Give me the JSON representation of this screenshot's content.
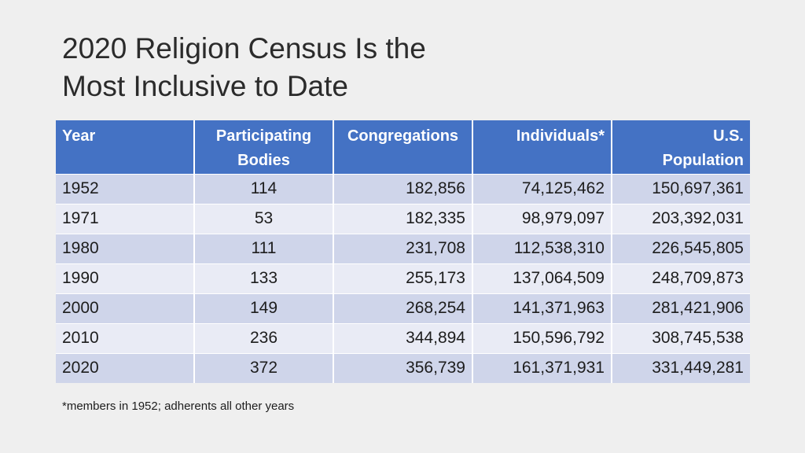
{
  "slide": {
    "title_line1": "2020 Religion Census Is the",
    "title_line2": "Most Inclusive to Date",
    "footnote": "*members in 1952; adherents all other years"
  },
  "table": {
    "headers": {
      "year": "Year",
      "bodies_line1": "Participating",
      "bodies_line2": "Bodies",
      "congregations": "Congregations",
      "individuals": "Individuals*",
      "population_line1": "U.S.",
      "population_line2": "Population"
    },
    "rows": [
      {
        "year": "1952",
        "bodies": "114",
        "congregations": "182,856",
        "individuals": "74,125,462",
        "population": "150,697,361"
      },
      {
        "year": "1971",
        "bodies": "53",
        "congregations": "182,335",
        "individuals": "98,979,097",
        "population": "203,392,031"
      },
      {
        "year": "1980",
        "bodies": "111",
        "congregations": "231,708",
        "individuals": "112,538,310",
        "population": "226,545,805"
      },
      {
        "year": "1990",
        "bodies": "133",
        "congregations": "255,173",
        "individuals": "137,064,509",
        "population": "248,709,873"
      },
      {
        "year": "2000",
        "bodies": "149",
        "congregations": "268,254",
        "individuals": "141,371,963",
        "population": "281,421,906"
      },
      {
        "year": "2010",
        "bodies": "236",
        "congregations": "344,894",
        "individuals": "150,596,792",
        "population": "308,745,538"
      },
      {
        "year": "2020",
        "bodies": "372",
        "congregations": "356,739",
        "individuals": "161,371,931",
        "population": "331,449,281"
      }
    ]
  },
  "colors": {
    "header_bg": "#4472c4",
    "row_odd_bg": "#cfd5ea",
    "row_even_bg": "#e9ebf5",
    "slide_bg": "#efefef"
  }
}
